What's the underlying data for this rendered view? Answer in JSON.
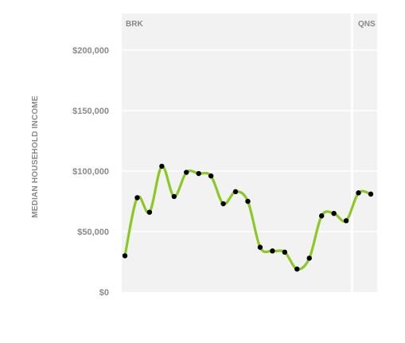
{
  "chart_data": {
    "type": "line",
    "ylabel": "MEDIAN HOUSEHOLD INCOME",
    "ylim": [
      0,
      220000
    ],
    "yticks": [
      {
        "value": 0,
        "label": "$0"
      },
      {
        "value": 50000,
        "label": "$50,000"
      },
      {
        "value": 100000,
        "label": "$100,000"
      },
      {
        "value": 150000,
        "label": "$150,000"
      },
      {
        "value": 200000,
        "label": "$200,000"
      }
    ],
    "grid": true,
    "groups": [
      {
        "label": "BRK",
        "start_index": 0
      },
      {
        "label": "QNS",
        "start_index": 19
      }
    ],
    "line_color": "#8ac926",
    "point_color": "#000000",
    "background": "#f2f2f2",
    "series": [
      {
        "values": [
          30000,
          78000,
          66000,
          104000,
          79000,
          99000,
          98000,
          96000,
          73000,
          83000,
          75000,
          37000,
          34000,
          33000,
          19000,
          28000,
          63000,
          65000,
          59000,
          82000,
          81000
        ]
      }
    ]
  }
}
